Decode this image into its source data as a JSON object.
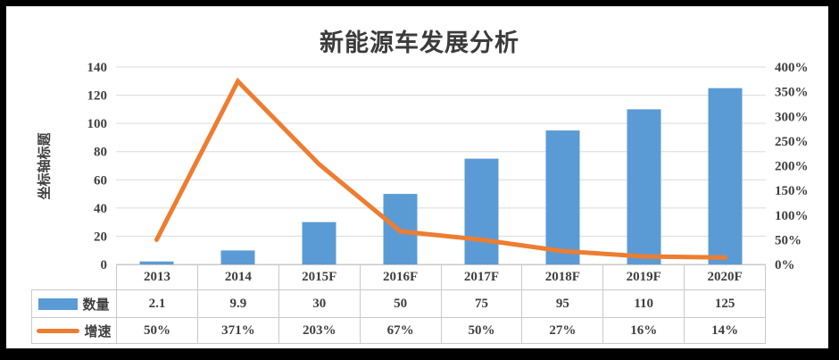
{
  "chart_data": {
    "type": "combo-bar-line",
    "title": "新能源车发展分析",
    "left_axis": {
      "title": "坐标轴标题",
      "min": 0,
      "max": 140,
      "step": 20,
      "ticks": [
        "0",
        "20",
        "40",
        "60",
        "80",
        "100",
        "120",
        "140"
      ]
    },
    "right_axis": {
      "min": 0,
      "max": 400,
      "step": 50,
      "ticks": [
        "0%",
        "50%",
        "100%",
        "150%",
        "200%",
        "250%",
        "300%",
        "350%",
        "400%"
      ]
    },
    "categories": [
      "2013",
      "2014",
      "2015F",
      "2016F",
      "2017F",
      "2018F",
      "2019F",
      "2020F"
    ],
    "series": [
      {
        "name": "数量",
        "type": "bar",
        "axis": "left",
        "color": "#5B9BD5",
        "values": [
          2.1,
          9.9,
          30,
          50,
          75,
          95,
          110,
          125
        ],
        "display": [
          "2.1",
          "9.9",
          "30",
          "50",
          "75",
          "95",
          "110",
          "125"
        ]
      },
      {
        "name": "增速",
        "type": "line",
        "axis": "right",
        "color": "#ED7D31",
        "values": [
          50,
          371,
          203,
          67,
          50,
          27,
          16,
          14
        ],
        "display": [
          "50%",
          "371%",
          "203%",
          "67%",
          "50%",
          "27%",
          "16%",
          "14%"
        ]
      }
    ],
    "grid": true,
    "legend_position": "data-table-left"
  },
  "colors": {
    "bar": "#5B9BD5",
    "line": "#ED7D31",
    "gridline": "#dcdcdc",
    "axis_line": "#c9c9c9",
    "table_border": "#c9c9c9",
    "text": "#3f3f3f",
    "frame": "#000000",
    "background": "#ffffff"
  }
}
